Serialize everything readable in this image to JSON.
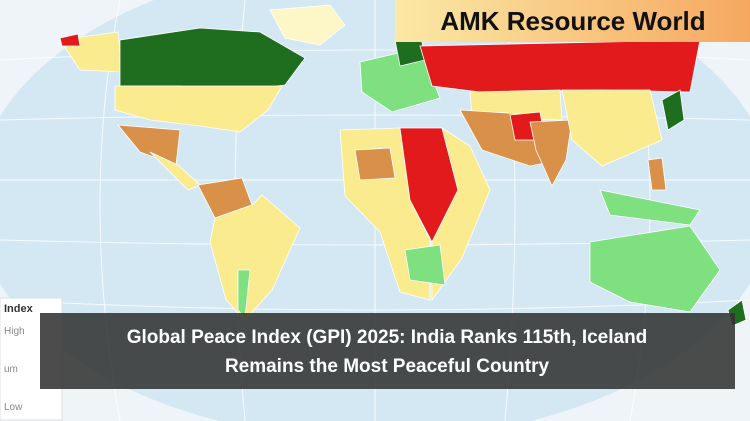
{
  "brand": "AMK Resource World",
  "banner": {
    "lines": [
      "Global Peace Index (GPI) 2025: India Ranks 115th, Iceland",
      "Remains the Most Peaceful Country"
    ]
  },
  "legend": {
    "title": "Index",
    "labels": [
      "High",
      "um",
      "Low"
    ]
  }
}
